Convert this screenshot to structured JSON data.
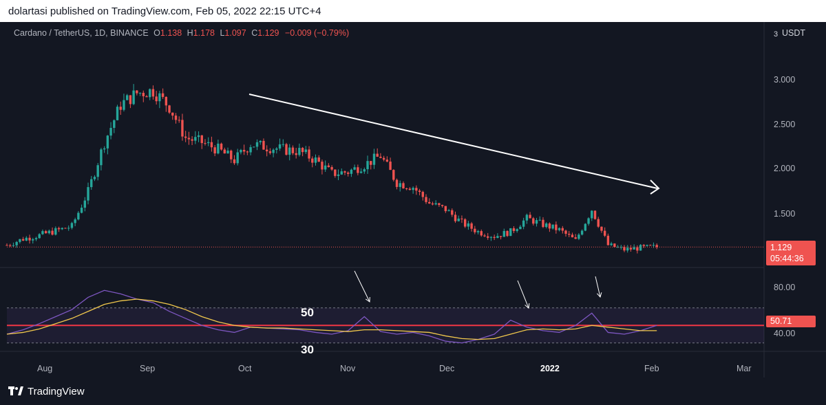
{
  "publish_line": "dolartasi published on TradingView.com, Feb 05, 2022 22:15 UTC+4",
  "legend": {
    "symbol": "Cardano / TetherUS, 1D, BINANCE",
    "o_label": "O",
    "o_value": "1.138",
    "h_label": "H",
    "h_value": "1.178",
    "l_label": "L",
    "l_value": "1.097",
    "c_label": "C",
    "c_value": "1.129",
    "change": "−0.009 (−0.79%)"
  },
  "price_scale": {
    "unit_prefix": "3",
    "unit": "USDT",
    "ticks": [
      "3.000",
      "2.500",
      "2.000",
      "1.500"
    ],
    "last_price": "1.129",
    "countdown": "05:44:36"
  },
  "rsi_scale": {
    "ticks": [
      "80.00",
      "40.00"
    ],
    "last_value": "50.71"
  },
  "months": [
    "Aug",
    "Sep",
    "Oct",
    "Nov",
    "Dec",
    "2022",
    "Feb",
    "Mar"
  ],
  "annotations": {
    "level_50": "50",
    "level_30": "30"
  },
  "footer_brand": "TradingView",
  "colors": {
    "up": "#26a69a",
    "down": "#ef5350",
    "rsi": "#7e57c2",
    "rsi_ma": "#f2c94c",
    "background": "#131722"
  },
  "chart_data": [
    {
      "type": "candlestick",
      "symbol": "ADA/USDT",
      "interval": "1D",
      "x_range": [
        "2021-07-20",
        "2022-03-10"
      ],
      "ylim": [
        1.0,
        3.1
      ],
      "last": 1.129,
      "x": [
        "2021-07-20",
        "2021-07-25",
        "2021-07-30",
        "2021-08-04",
        "2021-08-09",
        "2021-08-14",
        "2021-08-19",
        "2021-08-24",
        "2021-08-29",
        "2021-09-03",
        "2021-09-08",
        "2021-09-13",
        "2021-09-18",
        "2021-09-23",
        "2021-09-28",
        "2021-10-03",
        "2021-10-08",
        "2021-10-13",
        "2021-10-18",
        "2021-10-23",
        "2021-10-28",
        "2021-11-02",
        "2021-11-07",
        "2021-11-12",
        "2021-11-17",
        "2021-11-22",
        "2021-11-27",
        "2021-12-02",
        "2021-12-07",
        "2021-12-12",
        "2021-12-17",
        "2021-12-22",
        "2021-12-27",
        "2022-01-01",
        "2022-01-06",
        "2022-01-11",
        "2022-01-16",
        "2022-01-21",
        "2022-01-26",
        "2022-01-31",
        "2022-02-05"
      ],
      "close": [
        1.15,
        1.22,
        1.26,
        1.31,
        1.36,
        1.75,
        2.3,
        2.72,
        2.85,
        2.88,
        2.7,
        2.35,
        2.3,
        2.22,
        2.1,
        2.28,
        2.25,
        2.22,
        2.2,
        2.1,
        1.95,
        1.97,
        2.05,
        2.15,
        1.85,
        1.8,
        1.62,
        1.55,
        1.4,
        1.3,
        1.25,
        1.3,
        1.45,
        1.38,
        1.32,
        1.2,
        1.55,
        1.15,
        1.1,
        1.12,
        1.13
      ]
    },
    {
      "type": "line",
      "name": "RSI",
      "ylim": [
        20,
        100
      ],
      "levels": [
        70,
        50,
        30
      ],
      "last": 50.71,
      "x": [
        "2021-07-20",
        "2021-07-25",
        "2021-07-30",
        "2021-08-04",
        "2021-08-09",
        "2021-08-14",
        "2021-08-19",
        "2021-08-24",
        "2021-08-29",
        "2021-09-03",
        "2021-09-08",
        "2021-09-13",
        "2021-09-18",
        "2021-09-23",
        "2021-09-28",
        "2021-10-03",
        "2021-10-08",
        "2021-10-13",
        "2021-10-18",
        "2021-10-23",
        "2021-10-28",
        "2021-11-02",
        "2021-11-07",
        "2021-11-12",
        "2021-11-17",
        "2021-11-22",
        "2021-11-27",
        "2021-12-02",
        "2021-12-07",
        "2021-12-12",
        "2021-12-17",
        "2021-12-22",
        "2021-12-27",
        "2022-01-01",
        "2022-01-06",
        "2022-01-11",
        "2022-01-16",
        "2022-01-21",
        "2022-01-26",
        "2022-01-31",
        "2022-02-05"
      ],
      "series": [
        {
          "values": [
            40,
            45,
            52,
            60,
            68,
            82,
            90,
            86,
            80,
            76,
            66,
            58,
            50,
            45,
            42,
            48,
            47,
            46,
            45,
            42,
            40,
            44,
            60,
            43,
            40,
            42,
            38,
            32,
            30,
            34,
            40,
            56,
            48,
            44,
            42,
            50,
            64,
            42,
            40,
            44,
            50
          ]
        },
        {
          "values": [
            40,
            42,
            46,
            52,
            58,
            66,
            74,
            78,
            80,
            78,
            74,
            68,
            60,
            54,
            50,
            48,
            47,
            47,
            46,
            45,
            44,
            43,
            45,
            45,
            44,
            43,
            42,
            38,
            35,
            34,
            35,
            40,
            45,
            46,
            45,
            46,
            50,
            48,
            46,
            44,
            44
          ]
        }
      ]
    }
  ]
}
